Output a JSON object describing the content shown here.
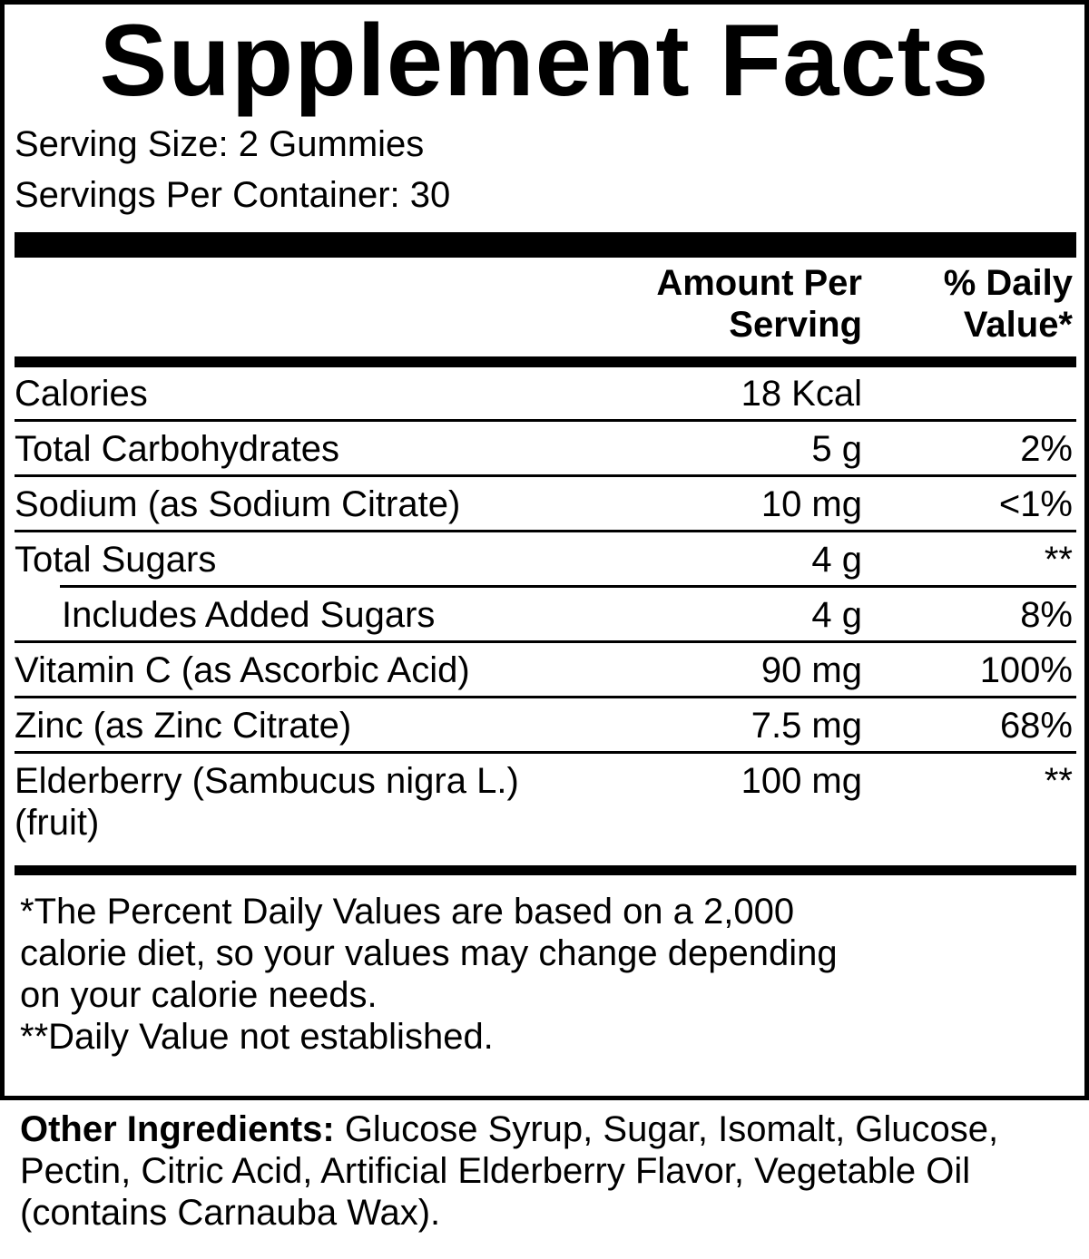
{
  "title": "Supplement Facts",
  "serving_size": "Serving Size: 2 Gummies",
  "servings_per_container": "Servings Per Container: 30",
  "header": {
    "amount_line1": "Amount Per",
    "amount_line2": "Serving",
    "dv_line1": "% Daily",
    "dv_line2": "Value*"
  },
  "rows": [
    {
      "name": "Calories",
      "amount": "18 Kcal",
      "dv": ""
    },
    {
      "name": "Total Carbohydrates",
      "amount": "5 g",
      "dv": "2%"
    },
    {
      "name": "Sodium (as Sodium Citrate)",
      "amount": "10 mg",
      "dv": "<1%"
    },
    {
      "name": "Total Sugars",
      "amount": "4 g",
      "dv": "**"
    },
    {
      "name": "Includes Added Sugars",
      "amount": "4 g",
      "dv": "8%"
    },
    {
      "name": "Vitamin C (as Ascorbic Acid)",
      "amount": "90 mg",
      "dv": "100%"
    },
    {
      "name": "Zinc (as Zinc Citrate)",
      "amount": "7.5 mg",
      "dv": "68%"
    },
    {
      "name": "Elderberry (Sambucus nigra L.)",
      "name_line2": "(fruit)",
      "amount": "100 mg",
      "dv": "**"
    }
  ],
  "footnotes": {
    "line1": "*The Percent Daily Values are based on a 2,000",
    "line2": "calorie diet, so your values may change depending",
    "line3": "on your calorie needs.",
    "line4": "**Daily Value not established."
  },
  "other_ingredients": {
    "label": "Other Ingredients:",
    "text": " Glucose Syrup, Sugar, Isomalt, Glucose, Pectin, Citric Acid, Artificial Elderberry Flavor, Vegetable Oil (contains Carnauba Wax)."
  }
}
